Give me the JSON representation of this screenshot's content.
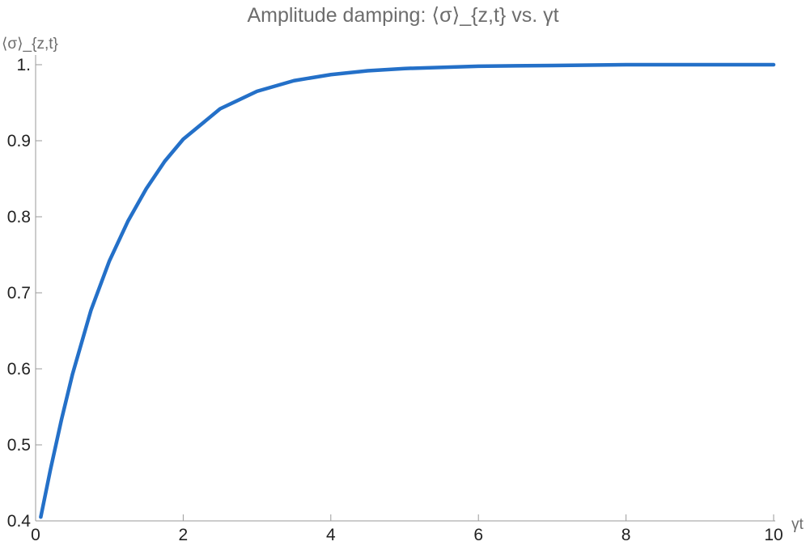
{
  "chart_data": {
    "type": "line",
    "title": "Amplitude damping: ⟨σ⟩_{z,t} vs. γt",
    "xlabel": "γt",
    "ylabel": "⟨σ⟩_{z,t}",
    "xlim": [
      0,
      10
    ],
    "ylim": [
      0.4,
      1.0
    ],
    "x_ticks": [
      0,
      2,
      4,
      6,
      8,
      10
    ],
    "x_tick_labels": [
      "0",
      "2",
      "4",
      "6",
      "8",
      "10"
    ],
    "y_ticks": [
      0.4,
      0.5,
      0.6,
      0.7,
      0.8,
      0.9,
      1.0
    ],
    "y_tick_labels": [
      "0.4",
      "0.5",
      "0.6",
      "0.7",
      "0.8",
      "0.9",
      "1."
    ],
    "grid": false,
    "series": [
      {
        "color": "#2470c8",
        "x": [
          0.07,
          0.2,
          0.35,
          0.5,
          0.75,
          1.0,
          1.25,
          1.5,
          1.75,
          2.0,
          2.5,
          3.0,
          3.5,
          4.0,
          4.5,
          5.0,
          6.0,
          7.0,
          8.0,
          9.0,
          10.0
        ],
        "y": [
          0.405,
          0.467,
          0.533,
          0.593,
          0.677,
          0.742,
          0.794,
          0.837,
          0.873,
          0.902,
          0.942,
          0.965,
          0.979,
          0.987,
          0.992,
          0.995,
          0.998,
          0.999,
          1.0,
          1.0,
          1.0
        ]
      }
    ]
  }
}
